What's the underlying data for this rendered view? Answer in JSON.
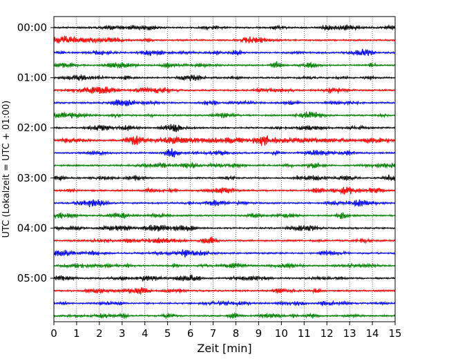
{
  "chart_data": {
    "type": "line",
    "title": "",
    "xlabel": "Zeit  [min]",
    "ylabel": "UTC (Lokalzeit = UTC + 01:00)",
    "xlim": [
      0,
      15
    ],
    "x_ticks": [
      "0",
      "1",
      "2",
      "3",
      "4",
      "5",
      "6",
      "7",
      "8",
      "9",
      "10",
      "11",
      "12",
      "13",
      "14",
      "15"
    ],
    "y_tick_labels": [
      "00:00",
      "01:00",
      "02:00",
      "03:00",
      "04:00",
      "05:00"
    ],
    "grid": "vertical dotted lines at each minute",
    "row_interval_minutes": 15,
    "rows": [
      {
        "start": "00:00",
        "color": "#000000"
      },
      {
        "start": "00:15",
        "color": "#ff0000"
      },
      {
        "start": "00:30",
        "color": "#0000ff"
      },
      {
        "start": "00:45",
        "color": "#008000"
      },
      {
        "start": "01:00",
        "color": "#000000"
      },
      {
        "start": "01:15",
        "color": "#ff0000"
      },
      {
        "start": "01:30",
        "color": "#0000ff"
      },
      {
        "start": "01:45",
        "color": "#008000"
      },
      {
        "start": "02:00",
        "color": "#000000"
      },
      {
        "start": "02:15",
        "color": "#ff0000"
      },
      {
        "start": "02:30",
        "color": "#0000ff"
      },
      {
        "start": "02:45",
        "color": "#008000"
      },
      {
        "start": "03:00",
        "color": "#000000"
      },
      {
        "start": "03:15",
        "color": "#ff0000"
      },
      {
        "start": "03:30",
        "color": "#0000ff"
      },
      {
        "start": "03:45",
        "color": "#008000"
      },
      {
        "start": "04:00",
        "color": "#000000"
      },
      {
        "start": "04:15",
        "color": "#ff0000"
      },
      {
        "start": "04:30",
        "color": "#0000ff"
      },
      {
        "start": "04:45",
        "color": "#008000"
      },
      {
        "start": "05:00",
        "color": "#000000"
      },
      {
        "start": "05:15",
        "color": "#ff0000"
      },
      {
        "start": "05:30",
        "color": "#0000ff"
      },
      {
        "start": "05:45",
        "color": "#008000"
      }
    ]
  }
}
